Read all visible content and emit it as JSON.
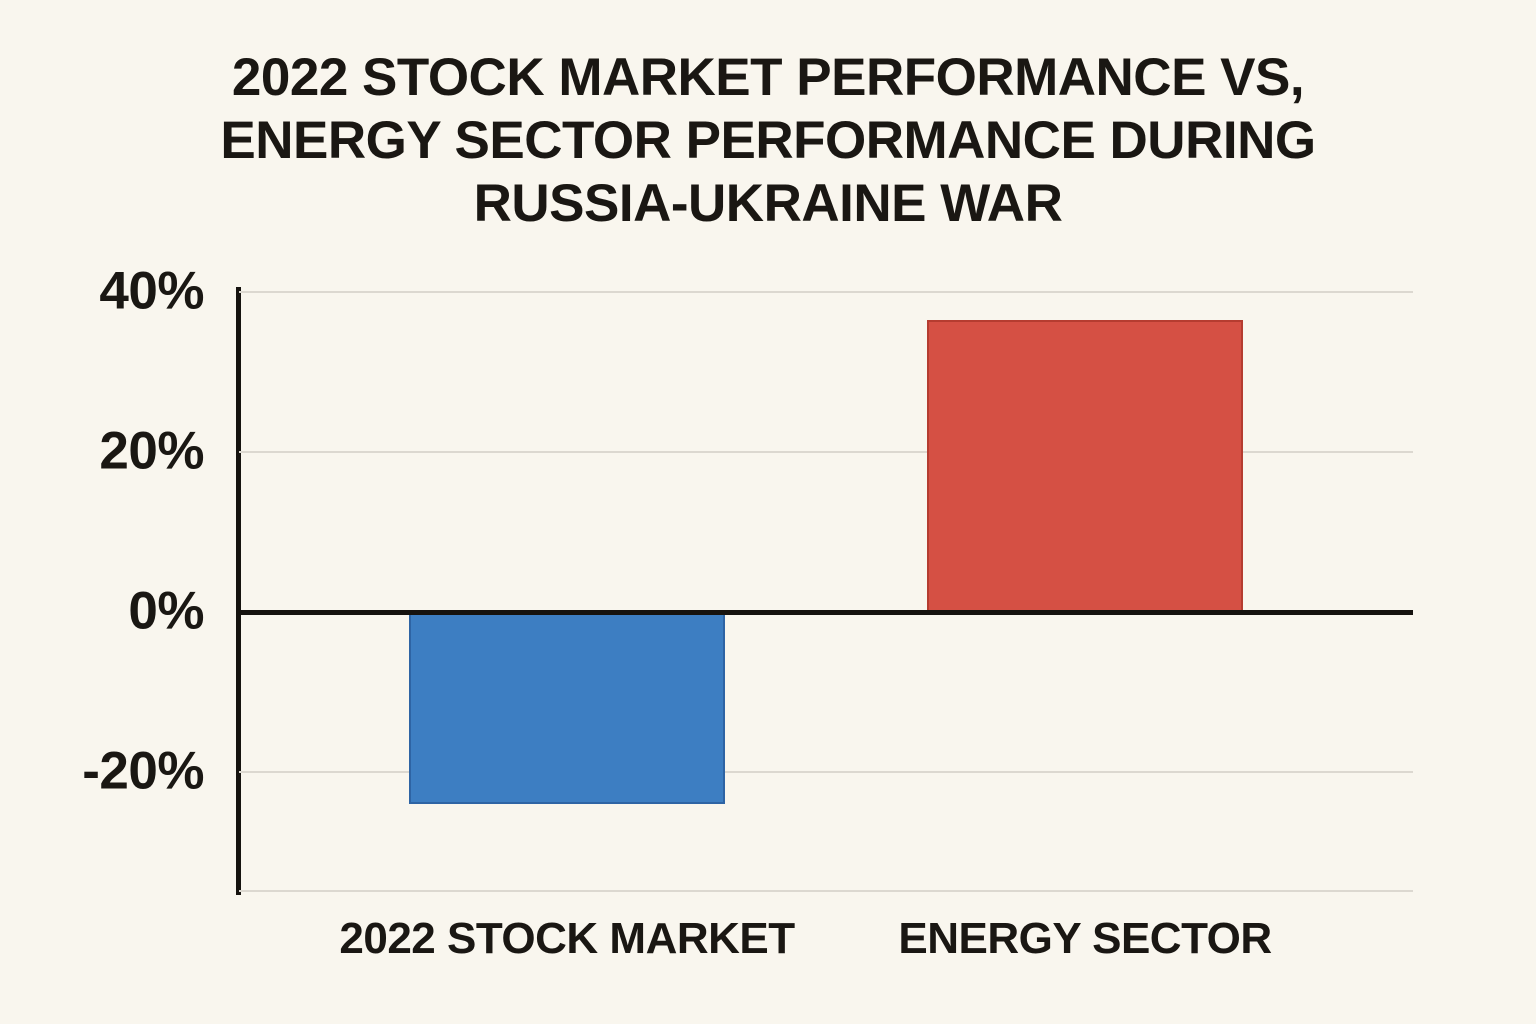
{
  "title": {
    "lines": [
      "2022 STOCK MARKET PERFORMANCE VS,",
      "ENERGY SECTOR PERFORMANCE DURING",
      "RUSSIA-UKRAINE WAR"
    ]
  },
  "chart_data": {
    "type": "bar",
    "title": "2022 STOCK MARKET PERFORMANCE VS, ENERGY SECTOR PERFORMANCE DURING RUSSIA-UKRAINE WAR",
    "categories": [
      "2022 STOCK MARKET",
      "ENERGY SECTOR"
    ],
    "values": [
      -24,
      36.5
    ],
    "unit": "%",
    "xlabel": "",
    "ylabel": "",
    "ylim": [
      -35,
      40
    ],
    "yticks": [
      {
        "value": 40,
        "label": "40%"
      },
      {
        "value": 20,
        "label": "20%"
      },
      {
        "value": 0,
        "label": "0%"
      },
      {
        "value": -20,
        "label": "-20%"
      }
    ],
    "grid": true,
    "legend": false,
    "bar_colors": [
      "#3d7ec2",
      "#d55044"
    ],
    "bar_border_colors": [
      "#2e64a4",
      "#b53c30"
    ]
  },
  "colors": {
    "background": "#f9f6ee",
    "text": "#1a1713",
    "axis": "#16130f",
    "gridline": "#dcd8d0"
  }
}
